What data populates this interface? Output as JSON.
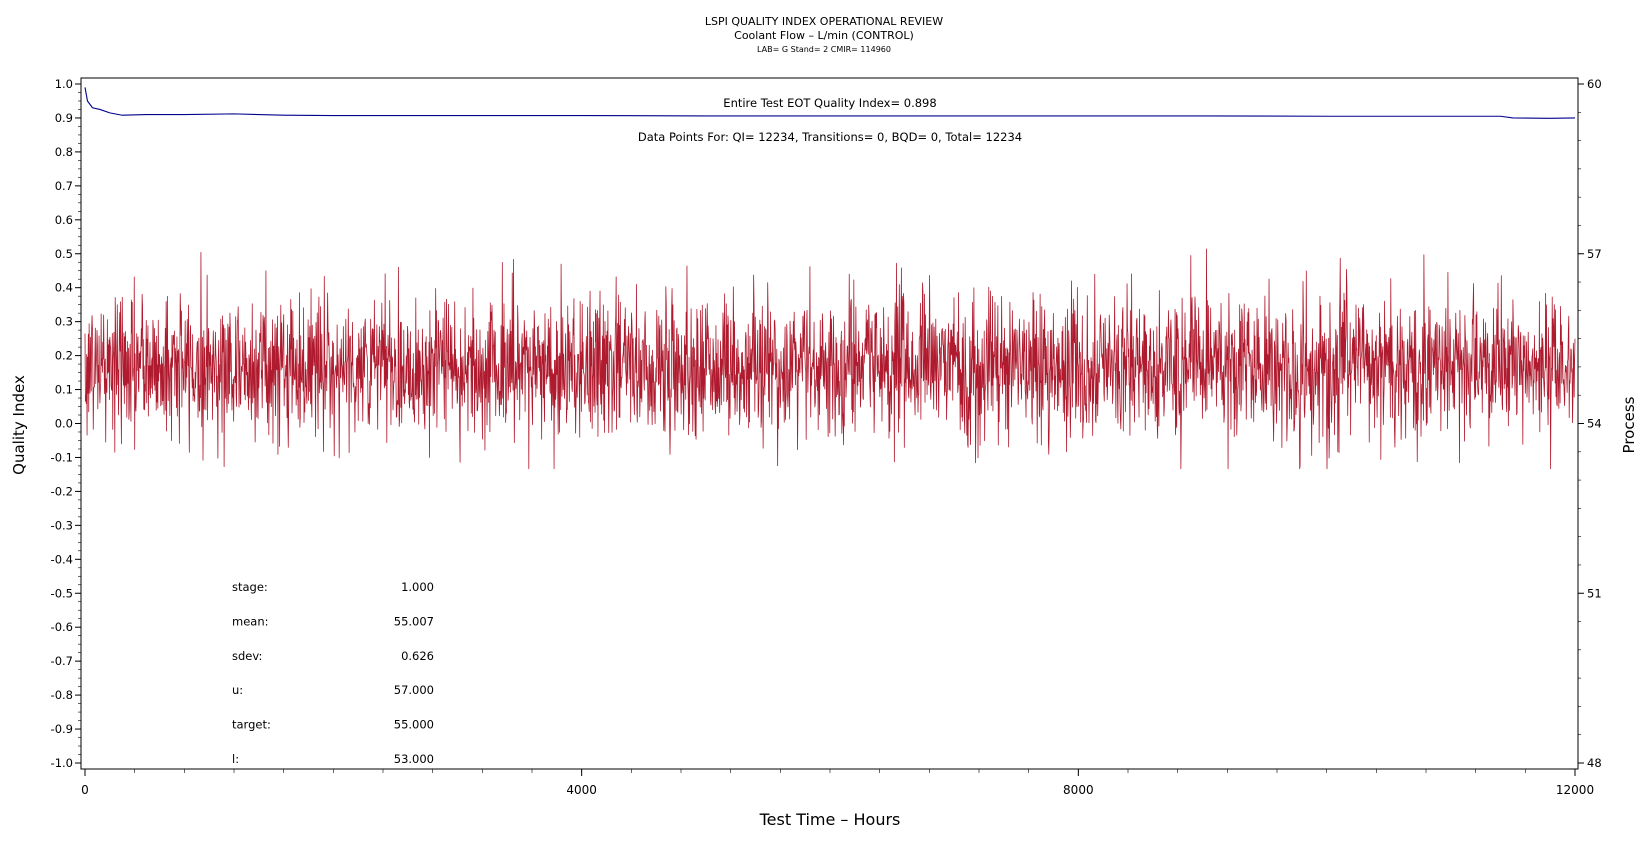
{
  "chart_data": {
    "type": "line",
    "title": "LSPI QUALITY INDEX OPERATIONAL REVIEW",
    "subtitle": "Coolant Flow – L/min (CONTROL)",
    "subtitle2": "LAB= G Stand= 2 CMIR= 114960",
    "xlabel": "Test Time – Hours",
    "ylabel": "Quality Index",
    "y2label": "Process",
    "xlim": [
      0,
      12000
    ],
    "ylim": [
      -1.0,
      1.0
    ],
    "y2lim": [
      48,
      60
    ],
    "x_ticks": [
      0,
      4000,
      8000,
      12000
    ],
    "x_tick_labels": [
      "0",
      "4000",
      "8000",
      "12000"
    ],
    "y_ticks": [
      1.0,
      0.9,
      0.8,
      0.7,
      0.6,
      0.5,
      0.4,
      0.3,
      0.2,
      0.1,
      0.0,
      -0.1,
      -0.2,
      -0.3,
      -0.4,
      -0.5,
      -0.6,
      -0.7,
      -0.8,
      -0.9,
      -1.0
    ],
    "y_tick_labels": [
      "1.0",
      "0.9",
      "0.8",
      "0.7",
      "0.6",
      "0.5",
      "0.4",
      "0.3",
      "0.2",
      "0.1",
      "0.0",
      "-0.1",
      "-0.2",
      "-0.3",
      "-0.4",
      "-0.5",
      "-0.6",
      "-0.7",
      "-0.8",
      "-0.9",
      "-1.0"
    ],
    "y2_ticks": [
      60,
      57,
      54,
      51,
      48
    ],
    "y2_tick_labels": [
      "60",
      "57",
      "54",
      "51",
      "48"
    ],
    "grid": false,
    "annotations": {
      "eot_quality_index": "Entire Test EOT Quality Index=   0.898",
      "data_points": "Data Points For: QI= 12234, Transitions=     0, BQD=     0, Total= 12234"
    },
    "stats": [
      {
        "label": "stage:",
        "value": "1.000"
      },
      {
        "label": "mean:",
        "value": "55.007"
      },
      {
        "label": "sdev:",
        "value": "0.626"
      },
      {
        "label": "u:",
        "value": "57.000"
      },
      {
        "label": "target:",
        "value": "55.000"
      },
      {
        "label": "l:",
        "value": "53.000"
      }
    ],
    "series": [
      {
        "color": "#00008b",
        "axis": "left",
        "x": [
          0,
          20,
          60,
          120,
          200,
          300,
          500,
          800,
          1200,
          1600,
          2000,
          3000,
          4000,
          5000,
          6000,
          7000,
          8000,
          9000,
          10000,
          11000,
          11400,
          11500,
          11800,
          12000
        ],
        "values": [
          0.99,
          0.95,
          0.93,
          0.925,
          0.915,
          0.908,
          0.91,
          0.91,
          0.912,
          0.908,
          0.907,
          0.907,
          0.907,
          0.906,
          0.906,
          0.906,
          0.906,
          0.906,
          0.905,
          0.905,
          0.905,
          0.9,
          0.899,
          0.9
        ]
      },
      {
        "color": "#b01a2e",
        "axis": "right",
        "x_range": [
          0,
          12000
        ],
        "count": 12234,
        "mean": 55.007,
        "sdev": 0.626
      }
    ]
  }
}
